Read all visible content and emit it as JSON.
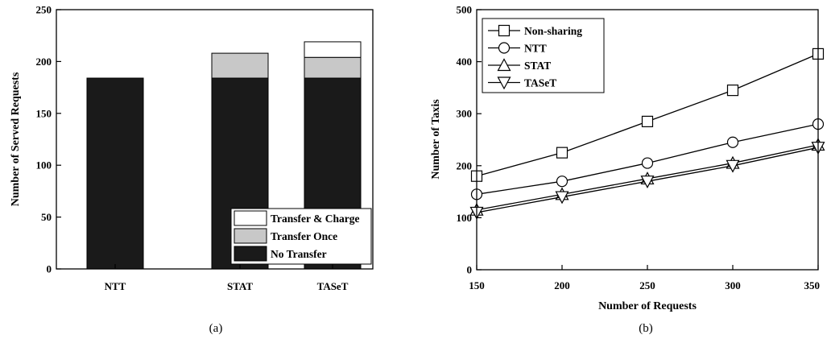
{
  "chart_data": [
    {
      "type": "bar",
      "stacked": true,
      "categories": [
        "NTT",
        "STAT",
        "TASeT"
      ],
      "series": [
        {
          "name": "No Transfer",
          "values": [
            184,
            184,
            184
          ],
          "color": "#1a1a1a"
        },
        {
          "name": "Transfer Once",
          "values": [
            0,
            24,
            20
          ],
          "color": "#c8c8c8"
        },
        {
          "name": "Transfer & Charge",
          "values": [
            0,
            0,
            15
          ],
          "color": "#ffffff"
        }
      ],
      "xlabel": "",
      "ylabel": "Number of Served Requests",
      "ylim": [
        0,
        250
      ],
      "yticks": [
        0,
        50,
        100,
        150,
        200,
        250
      ],
      "legend_position": "bottom-right",
      "grid": false,
      "caption": "(a)"
    },
    {
      "type": "line",
      "x": [
        150,
        200,
        250,
        300,
        350
      ],
      "series": [
        {
          "name": "Non-sharing",
          "marker": "square",
          "values": [
            180,
            225,
            285,
            345,
            415
          ]
        },
        {
          "name": "NTT",
          "marker": "circle",
          "values": [
            145,
            170,
            205,
            245,
            280
          ]
        },
        {
          "name": "STAT",
          "marker": "triangle-up",
          "values": [
            115,
            145,
            175,
            205,
            240
          ]
        },
        {
          "name": "TASeT",
          "marker": "triangle-down",
          "values": [
            110,
            140,
            170,
            200,
            235
          ]
        }
      ],
      "xlabel": "Number of Requests",
      "ylabel": "Number of Taxis",
      "xlim": [
        150,
        350
      ],
      "ylim": [
        0,
        500
      ],
      "xticks": [
        150,
        200,
        250,
        300,
        350
      ],
      "yticks": [
        0,
        100,
        200,
        300,
        400,
        500
      ],
      "legend_position": "top-left",
      "grid": false,
      "caption": "(b)"
    }
  ]
}
